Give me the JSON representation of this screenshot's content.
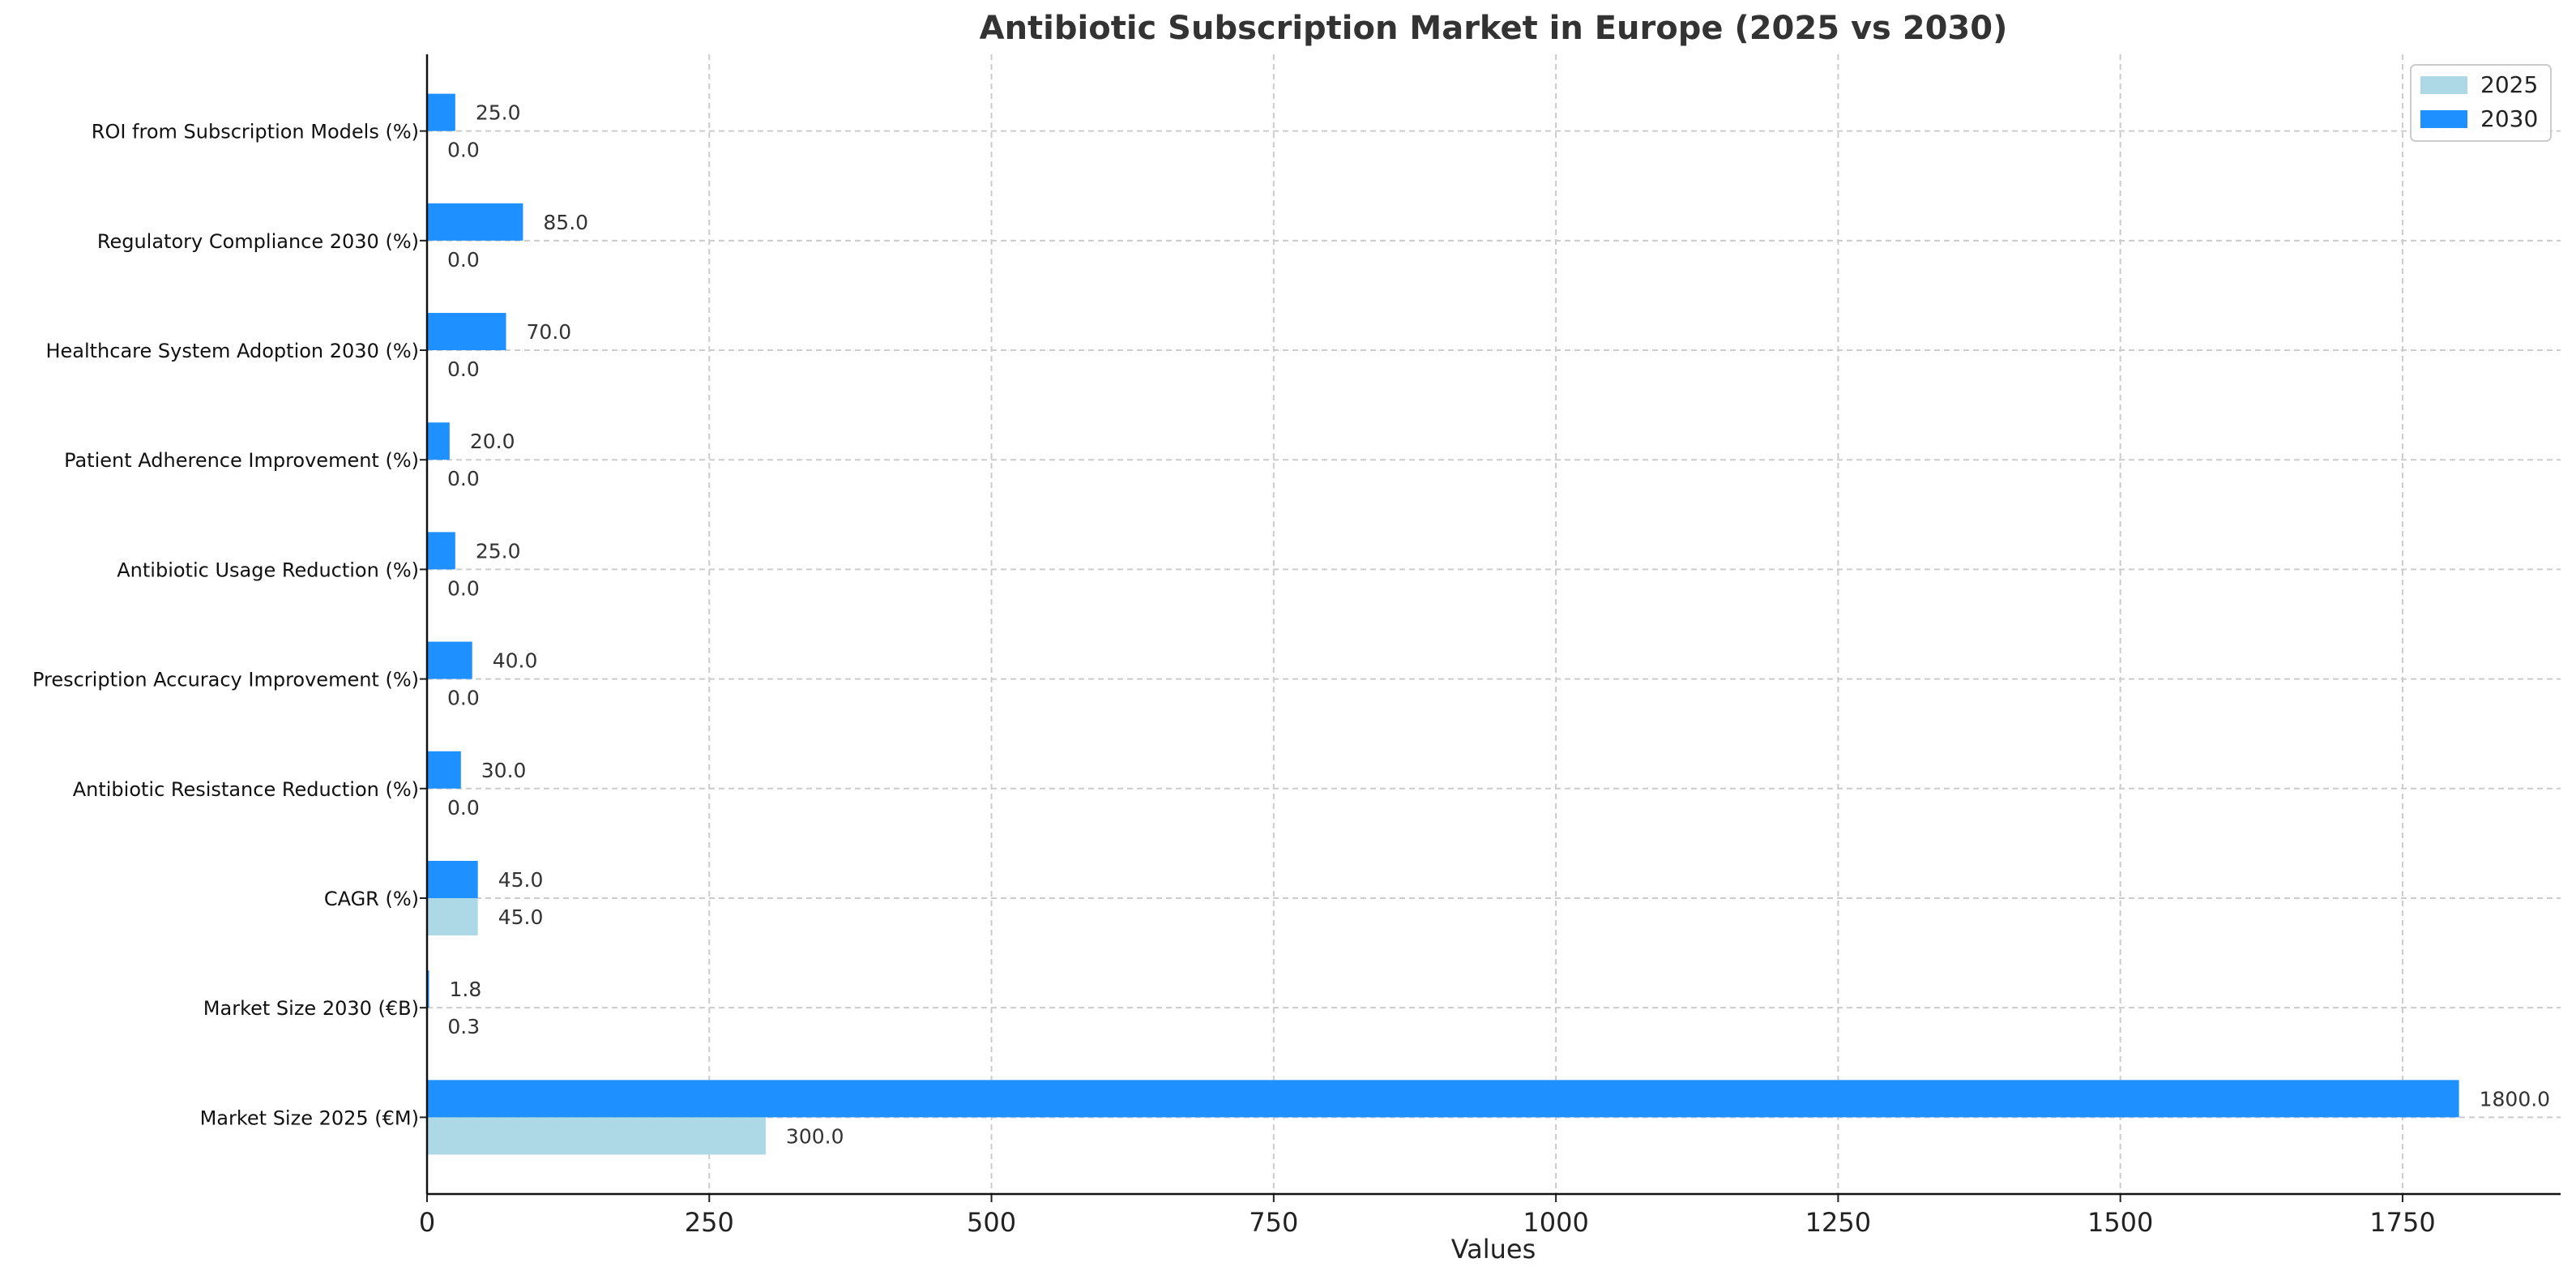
{
  "chart_data": {
    "type": "bar",
    "orientation": "horizontal",
    "title": "Antibiotic Subscription Market in Europe (2025 vs 2030)",
    "xlabel": "Values",
    "ylabel": "",
    "xlim": [
      0,
      1890
    ],
    "xticks": [
      0,
      250,
      500,
      750,
      1000,
      1250,
      1500,
      1750
    ],
    "grid": true,
    "legend_position": "top-right",
    "categories": [
      "Market Size 2025 (€M)",
      "Market Size 2030 (€B)",
      "CAGR (%)",
      "Antibiotic Resistance Reduction (%)",
      "Prescription Accuracy Improvement (%)",
      "Antibiotic Usage Reduction (%)",
      "Patient Adherence Improvement (%)",
      "Healthcare System Adoption 2030 (%)",
      "Regulatory Compliance 2030 (%)",
      "ROI from Subscription Models (%)"
    ],
    "series": [
      {
        "name": "2025",
        "color": "#add8e6",
        "values": [
          300.0,
          0.3,
          45.0,
          0.0,
          0.0,
          0.0,
          0.0,
          0.0,
          0.0,
          0.0
        ],
        "labels": [
          "300.0",
          "0.3",
          "45.0",
          "0.0",
          "0.0",
          "0.0",
          "0.0",
          "0.0",
          "0.0",
          "0.0"
        ]
      },
      {
        "name": "2030",
        "color": "#1e90ff",
        "values": [
          1800.0,
          1.8,
          45.0,
          30.0,
          40.0,
          25.0,
          20.0,
          70.0,
          85.0,
          25.0
        ],
        "labels": [
          "1800.0",
          "1.8",
          "45.0",
          "30.0",
          "40.0",
          "25.0",
          "20.0",
          "70.0",
          "85.0",
          "25.0"
        ]
      }
    ]
  }
}
